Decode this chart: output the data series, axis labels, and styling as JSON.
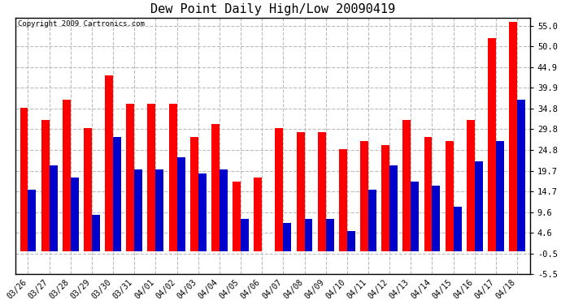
{
  "title": "Dew Point Daily High/Low 20090419",
  "copyright": "Copyright 2009 Cartronics.com",
  "dates": [
    "03/26",
    "03/27",
    "03/28",
    "03/29",
    "03/30",
    "03/31",
    "04/01",
    "04/02",
    "04/03",
    "04/04",
    "04/05",
    "04/06",
    "04/07",
    "04/08",
    "04/09",
    "04/10",
    "04/11",
    "04/12",
    "04/13",
    "04/14",
    "04/15",
    "04/16",
    "04/17",
    "04/18"
  ],
  "highs": [
    35,
    32,
    37,
    30,
    43,
    36,
    36,
    36,
    28,
    31,
    17,
    18,
    30,
    29,
    29,
    25,
    27,
    26,
    32,
    28,
    27,
    32,
    52,
    56
  ],
  "lows": [
    15,
    21,
    18,
    9,
    28,
    20,
    20,
    23,
    19,
    20,
    8,
    0,
    7,
    8,
    8,
    5,
    15,
    21,
    17,
    16,
    11,
    22,
    27,
    37
  ],
  "high_color": "#ff0000",
  "low_color": "#0000cc",
  "bg_color": "#ffffff",
  "yticks": [
    -5.5,
    -0.5,
    4.6,
    9.6,
    14.7,
    19.7,
    24.8,
    29.8,
    34.8,
    39.9,
    44.9,
    50.0,
    55.0
  ],
  "ymin": -5.5,
  "ymax": 57.0,
  "bar_width": 0.38,
  "grid_color": "#bbbbbb",
  "title_fontsize": 11,
  "copyright_fontsize": 6.5,
  "tick_fontsize": 7,
  "ytick_fontsize": 7.5
}
